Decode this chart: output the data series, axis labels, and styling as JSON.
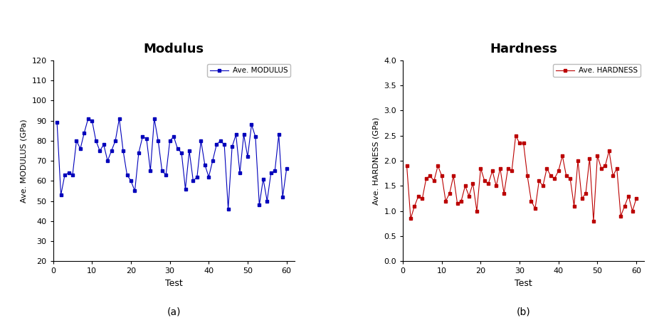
{
  "modulus_title": "Modulus",
  "hardness_title": "Hardness",
  "modulus_ylabel": "Ave. MODULUS (GPa)",
  "hardness_ylabel": "Ave. HARDNESS (GPa)",
  "xlabel": "Test",
  "modulus_legend": "Ave. MODULUS",
  "hardness_legend": "Ave. HARDNESS",
  "modulus_color": "#0000BB",
  "hardness_color": "#BB0000",
  "modulus_ylim": [
    20,
    120
  ],
  "modulus_yticks": [
    20,
    30,
    40,
    50,
    60,
    70,
    80,
    90,
    100,
    110,
    120
  ],
  "hardness_ylim": [
    0.0,
    4.0
  ],
  "hardness_yticks": [
    0.0,
    0.5,
    1.0,
    1.5,
    2.0,
    2.5,
    3.0,
    3.5,
    4.0
  ],
  "xlim": [
    0,
    62
  ],
  "xticks": [
    0,
    10,
    20,
    30,
    40,
    50,
    60
  ],
  "subtitle_a": "(a)",
  "subtitle_b": "(b)",
  "modulus_x": [
    1,
    2,
    3,
    4,
    5,
    6,
    7,
    8,
    9,
    10,
    11,
    12,
    13,
    14,
    15,
    16,
    17,
    18,
    19,
    20,
    21,
    22,
    23,
    24,
    25,
    26,
    27,
    28,
    29,
    30,
    31,
    32,
    33,
    34,
    35,
    36,
    37,
    38,
    39,
    40,
    41,
    42,
    43,
    44,
    45,
    46,
    47,
    48,
    49,
    50,
    51,
    52,
    53,
    54,
    55,
    56,
    57,
    58,
    59,
    60
  ],
  "modulus_y": [
    89,
    53,
    63,
    64,
    63,
    80,
    76,
    84,
    91,
    90,
    80,
    75,
    78,
    70,
    75,
    80,
    91,
    75,
    63,
    60,
    55,
    74,
    82,
    81,
    65,
    91,
    80,
    65,
    63,
    80,
    82,
    76,
    74,
    56,
    75,
    60,
    62,
    80,
    68,
    62,
    70,
    78,
    80,
    78,
    46,
    77,
    83,
    64,
    83,
    72,
    88,
    82,
    48,
    61,
    50,
    64,
    65,
    83,
    52,
    66
  ],
  "hardness_x": [
    1,
    2,
    3,
    4,
    5,
    6,
    7,
    8,
    9,
    10,
    11,
    12,
    13,
    14,
    15,
    16,
    17,
    18,
    19,
    20,
    21,
    22,
    23,
    24,
    25,
    26,
    27,
    28,
    29,
    30,
    31,
    32,
    33,
    34,
    35,
    36,
    37,
    38,
    39,
    40,
    41,
    42,
    43,
    44,
    45,
    46,
    47,
    48,
    49,
    50,
    51,
    52,
    53,
    54,
    55,
    56,
    57,
    58,
    59,
    60
  ],
  "hardness_y": [
    1.9,
    0.85,
    1.1,
    1.3,
    1.25,
    1.65,
    1.7,
    1.6,
    1.9,
    1.7,
    1.2,
    1.35,
    1.7,
    1.15,
    1.2,
    1.5,
    1.3,
    1.55,
    1.0,
    1.85,
    1.6,
    1.55,
    1.8,
    1.5,
    1.85,
    1.35,
    1.85,
    1.8,
    2.5,
    2.35,
    2.35,
    1.7,
    1.2,
    1.05,
    1.6,
    1.5,
    1.85,
    1.7,
    1.65,
    1.8,
    2.1,
    1.7,
    1.65,
    1.1,
    2.0,
    1.25,
    1.35,
    2.05,
    0.8,
    2.1,
    1.85,
    1.9,
    2.2,
    1.7,
    1.85,
    0.9,
    1.1,
    1.3,
    1.0,
    1.25
  ]
}
